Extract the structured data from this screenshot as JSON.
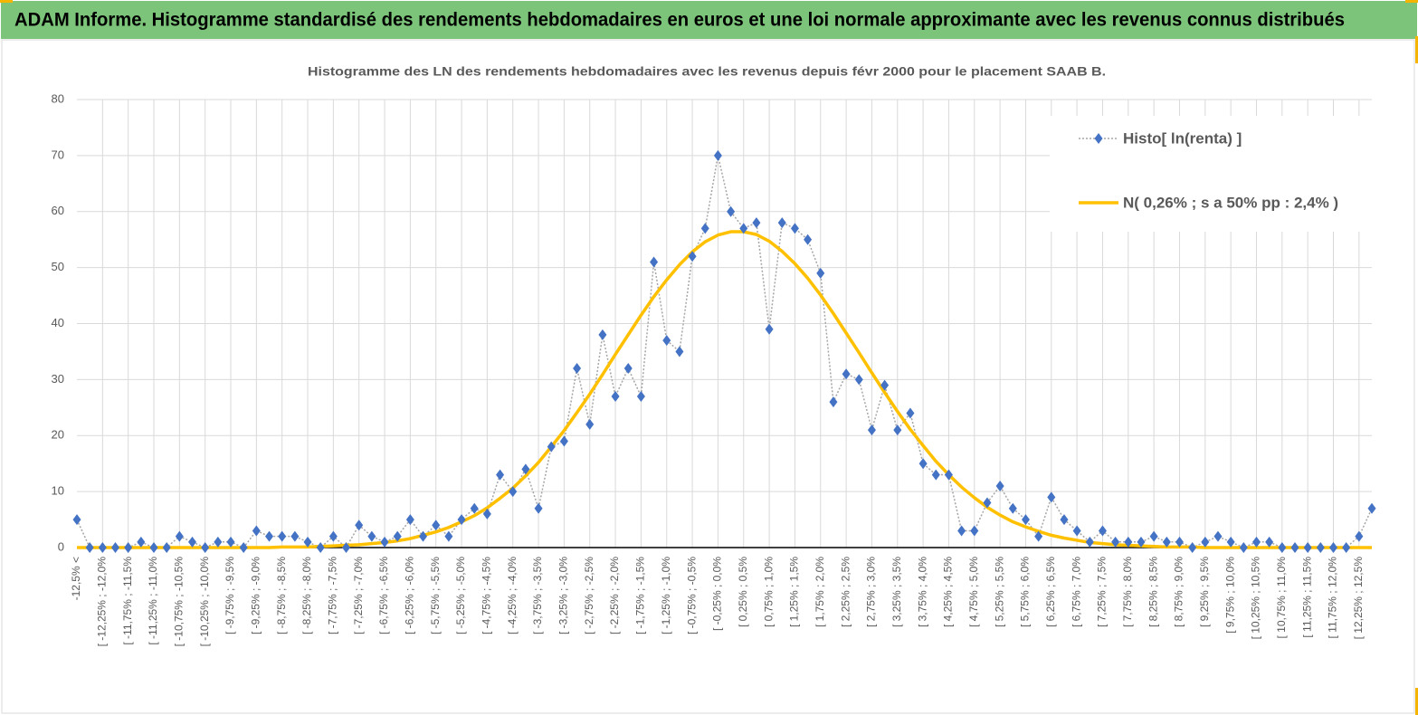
{
  "header": {
    "title": "ADAM Informe. Histogramme standardisé des rendements hebdomadaires en euros et une loi normale approximante avec les revenus connus distribués"
  },
  "chart_data": {
    "type": "line",
    "title": "Histogramme des LN des rendements hebdomadaires avec les revenus depuis févr 2000 pour le placement SAAB B.",
    "categories": [
      "-12,5% <",
      null,
      "[ -12,25% ; -12,0%",
      null,
      "[ -11,75% ; -11,5%",
      null,
      "[ -11,25% ; -11,0%",
      null,
      "[ -10,75% ; -10,5%",
      null,
      "[ -10,25% ; -10,0%",
      null,
      "[ -9,75% ; -9,5%",
      null,
      "[ -9,25% ; -9,0%",
      null,
      "[ -8,75% ; -8,5%",
      null,
      "[ -8,25% ; -8,0%",
      null,
      "[ -7,75% ; -7,5%",
      null,
      "[ -7,25% ; -7,0%",
      null,
      "[ -6,75% ; -6,5%",
      null,
      "[ -6,25% ; -6,0%",
      null,
      "[ -5,75% ; -5,5%",
      null,
      "[ -5,25% ; -5,0%",
      null,
      "[ -4,75% ; -4,5%",
      null,
      "[ -4,25% ; -4,0%",
      null,
      "[ -3,75% ; -3,5%",
      null,
      "[ -3,25% ; -3,0%",
      null,
      "[ -2,75% ; -2,5%",
      null,
      "[ -2,25% ; -2,0%",
      null,
      "[ -1,75% ; -1,5%",
      null,
      "[ -1,25% ; -1,0%",
      null,
      "[ -0,75% ; -0,5%",
      null,
      "[ -0,25% ; 0,0%",
      null,
      "[ 0,25% ; 0,5%",
      null,
      "[ 0,75% ; 1,0%",
      null,
      "[ 1,25% ; 1,5%",
      null,
      "[ 1,75% ; 2,0%",
      null,
      "[ 2,25% ; 2,5%",
      null,
      "[ 2,75% ; 3,0%",
      null,
      "[ 3,25% ; 3,5%",
      null,
      "[ 3,75% ; 4,0%",
      null,
      "[ 4,25% ; 4,5%",
      null,
      "[ 4,75% ; 5,0%",
      null,
      "[ 5,25% ; 5,5%",
      null,
      "[ 5,75% ; 6,0%",
      null,
      "[ 6,25% ; 6,5%",
      null,
      "[ 6,75% ; 7,0%",
      null,
      "[ 7,25% ; 7,5%",
      null,
      "[ 7,75% ; 8,0%",
      null,
      "[ 8,25% ; 8,5%",
      null,
      "[ 8,75% ; 9,0%",
      null,
      "[ 9,25% ; 9,5%",
      null,
      "[ 9,75% ; 10,0%",
      null,
      "[ 10,25% ; 10,5%",
      null,
      "[ 10,75% ; 11,0%",
      null,
      "[ 11,25% ; 11,5%",
      null,
      "[ 11,75% ; 12,0%",
      null,
      "[ 12,25% ; 12,5%",
      null
    ],
    "series": [
      {
        "name": "Histo[ ln(renta) ]",
        "color": "#4472c4",
        "line_color": "#a5a5a5",
        "values": [
          5,
          0,
          0,
          0,
          0,
          1,
          0,
          0,
          2,
          1,
          0,
          1,
          1,
          0,
          3,
          2,
          2,
          2,
          1,
          0,
          2,
          0,
          4,
          2,
          1,
          2,
          5,
          2,
          4,
          2,
          5,
          7,
          6,
          13,
          10,
          14,
          7,
          18,
          19,
          32,
          22,
          38,
          27,
          32,
          27,
          51,
          37,
          35,
          52,
          57,
          70,
          60,
          57,
          58,
          39,
          58,
          57,
          55,
          49,
          26,
          31,
          30,
          21,
          29,
          21,
          24,
          15,
          13,
          13,
          3,
          3,
          8,
          11,
          7,
          5,
          2,
          9,
          5,
          3,
          1,
          3,
          1,
          1,
          1,
          2,
          1,
          1,
          0,
          1,
          2,
          1,
          0,
          1,
          1,
          0,
          0,
          0,
          0,
          0,
          0,
          2,
          7
        ]
      },
      {
        "name": "N( 0,26% ; s a 50% pp : 2,4% )",
        "color": "#ffc000",
        "values": [
          0,
          0,
          0,
          0,
          0,
          0,
          0,
          0,
          0,
          0,
          0,
          0,
          0,
          0,
          0,
          0,
          0.1,
          0.1,
          0.1,
          0.2,
          0.3,
          0.4,
          0.5,
          0.7,
          0.9,
          1.2,
          1.6,
          2.2,
          2.8,
          3.6,
          4.6,
          5.7,
          7.1,
          8.8,
          10.6,
          12.8,
          15.2,
          18.0,
          20.9,
          24.1,
          27.4,
          30.9,
          34.5,
          38.0,
          41.5,
          44.8,
          47.8,
          50.5,
          52.8,
          54.6,
          55.8,
          56.4,
          56.4,
          55.9,
          54.7,
          52.9,
          50.7,
          48.1,
          45.1,
          41.8,
          38.3,
          34.8,
          31.2,
          27.7,
          24.3,
          21.1,
          18.2,
          15.4,
          13.0,
          10.8,
          8.9,
          7.2,
          5.8,
          4.6,
          3.7,
          2.9,
          2.2,
          1.7,
          1.3,
          0.9,
          0.7,
          0.5,
          0.4,
          0.3,
          0.2,
          0.1,
          0.1,
          0.1,
          0,
          0,
          0,
          0,
          0,
          0,
          0,
          0,
          0,
          0,
          0,
          0,
          0,
          0
        ]
      }
    ],
    "ylim": [
      0,
      80
    ],
    "yticks": [
      0,
      10,
      20,
      30,
      40,
      50,
      60,
      70,
      80
    ],
    "grid": true,
    "legend": "upper right"
  }
}
